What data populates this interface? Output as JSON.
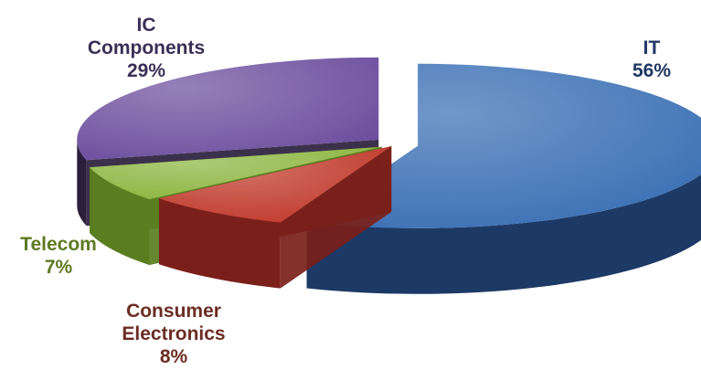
{
  "chart_data": {
    "type": "pie",
    "style": "3d-exploded",
    "title": "",
    "slices": [
      {
        "label_lines": [
          "IT"
        ],
        "value": 56,
        "value_text": "56%",
        "top_color": "#3a6fb4",
        "side_color": "#1d3a66",
        "label_color": "#1f3864"
      },
      {
        "label_lines": [
          "Consumer",
          "Electronics"
        ],
        "value": 8,
        "value_text": "8%",
        "top_color": "#c0392b",
        "side_color": "#7a1f1a",
        "label_color": "#6b2d23"
      },
      {
        "label_lines": [
          "Telecom"
        ],
        "value": 7,
        "value_text": "7%",
        "top_color": "#8cb540",
        "side_color": "#5a7e1f",
        "label_color": "#5e7a22"
      },
      {
        "label_lines": [
          "IC",
          "Components"
        ],
        "value": 29,
        "value_text": "29%",
        "top_color": "#6d4f9e",
        "side_color": "#2b1f3d",
        "label_color": "#3b2f56"
      }
    ]
  }
}
